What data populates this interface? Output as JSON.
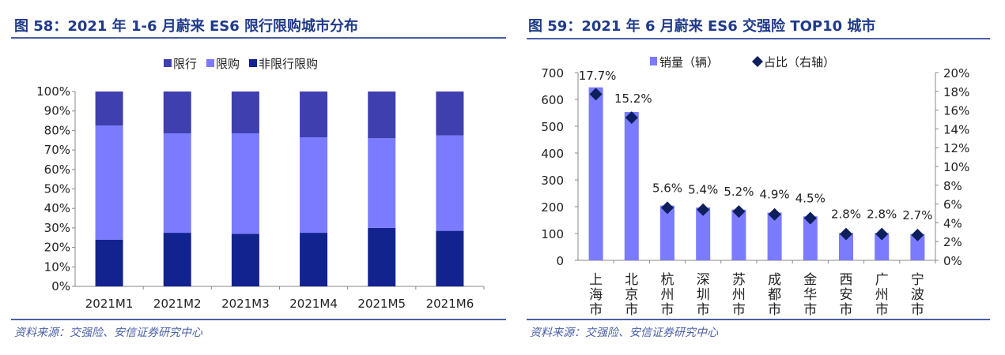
{
  "chart_data": [
    {
      "type": "bar",
      "stacked": true,
      "percent_stacked": true,
      "title": "图 58：2021 年 1-6 月蔚来 ES6 限行限购城市分布",
      "source": "资料来源：交强险、安信证券研究中心",
      "categories": [
        "2021M1",
        "2021M2",
        "2021M3",
        "2021M4",
        "2021M5",
        "2021M6"
      ],
      "series": [
        {
          "name": "非限行限购",
          "color": "#12238f",
          "values": [
            24,
            27.5,
            27,
            27.5,
            30,
            28.5
          ]
        },
        {
          "name": "限购",
          "color": "#7b7bff",
          "values": [
            58.5,
            51,
            51.5,
            49,
            46,
            49
          ]
        },
        {
          "name": "限行",
          "color": "#3f3fb0",
          "values": [
            17.5,
            21.5,
            21.5,
            23.5,
            24,
            22.5
          ]
        }
      ],
      "legend_order": [
        "限行",
        "限购",
        "非限行限购"
      ],
      "ylim": [
        0,
        100
      ],
      "yticks": [
        "0%",
        "10%",
        "20%",
        "30%",
        "40%",
        "50%",
        "60%",
        "70%",
        "80%",
        "90%",
        "100%"
      ],
      "grid": false,
      "legend": "top"
    },
    {
      "type": "bar",
      "title": "图 59：2021 年 6 月蔚来 ES6 交强险 TOP10 城市",
      "source": "资料来源：交强险、安信证券研究中心",
      "categories": [
        "上海市",
        "北京市",
        "杭州市",
        "深圳市",
        "苏州市",
        "成都市",
        "金华市",
        "西安市",
        "广州市",
        "宁波市"
      ],
      "series": [
        {
          "name": "销量（辆）",
          "type": "bar",
          "axis": "left",
          "color": "#7b7bff",
          "values": [
            645,
            553,
            204,
            197,
            189,
            178,
            164,
            102,
            102,
            98
          ]
        },
        {
          "name": "占比（右轴）",
          "type": "scatter",
          "marker": "diamond",
          "axis": "right",
          "color": "#0d1f5c",
          "values": [
            17.7,
            15.2,
            5.6,
            5.4,
            5.2,
            4.9,
            4.5,
            2.8,
            2.8,
            2.7
          ],
          "labels": [
            "17.7%",
            "15.2%",
            "5.6%",
            "5.4%",
            "5.2%",
            "4.9%",
            "4.5%",
            "2.8%",
            "2.8%",
            "2.7%"
          ]
        }
      ],
      "ylim": [
        0,
        700
      ],
      "yticks": [
        "0",
        "100",
        "200",
        "300",
        "400",
        "500",
        "600",
        "700"
      ],
      "y2lim": [
        0,
        20
      ],
      "y2ticks": [
        "0%",
        "2%",
        "4%",
        "6%",
        "8%",
        "10%",
        "12%",
        "14%",
        "16%",
        "18%",
        "20%"
      ],
      "grid": false,
      "legend": "top"
    }
  ]
}
